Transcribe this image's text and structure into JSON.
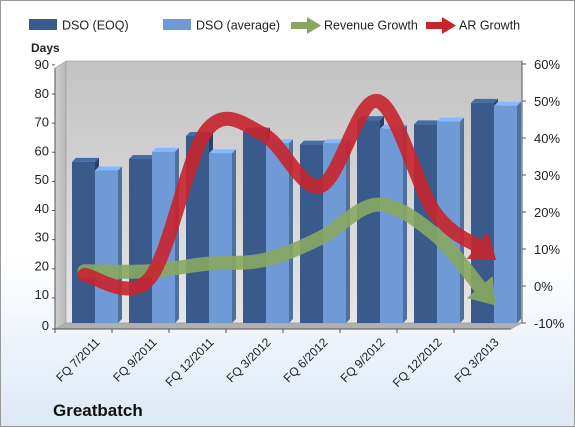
{
  "company_name": "Greatbatch",
  "chart_data": {
    "type": "bar",
    "categories": [
      "FQ 7/2011",
      "FQ 9/2011",
      "FQ 12/2011",
      "FQ 3/2012",
      "FQ 6/2012",
      "FQ 9/2012",
      "FQ 12/2012",
      "FQ 3/2013"
    ],
    "series": [
      {
        "name": "DSO (EOQ)",
        "type": "bar",
        "axis": "left",
        "color": "#3a5a8c",
        "values": [
          56,
          57,
          65,
          66.5,
          62,
          70.5,
          69,
          76.5
        ]
      },
      {
        "name": "DSO (average)",
        "type": "bar",
        "axis": "left",
        "color": "#6f9ad6",
        "values": [
          53,
          59.5,
          59,
          62.5,
          62.5,
          67.5,
          70,
          75.5
        ]
      },
      {
        "name": "Revenue Growth",
        "type": "arrow",
        "axis": "right",
        "color": "#88a860",
        "values": [
          4,
          4,
          6,
          7,
          13,
          22,
          14,
          -4
        ]
      },
      {
        "name": "AR Growth",
        "type": "arrow",
        "axis": "right",
        "color": "#c8242c",
        "values": [
          3,
          2,
          42,
          41,
          27,
          50,
          20,
          8
        ]
      }
    ],
    "ylabel": "Days",
    "ylim": [
      0,
      90
    ],
    "yticks": [
      0,
      10,
      20,
      30,
      40,
      50,
      60,
      70,
      80,
      90
    ],
    "y2lim": [
      -10,
      60
    ],
    "y2ticks": [
      "-10%",
      "0%",
      "10%",
      "20%",
      "30%",
      "40%",
      "50%",
      "60%"
    ],
    "legend_position": "top",
    "grid": false
  }
}
